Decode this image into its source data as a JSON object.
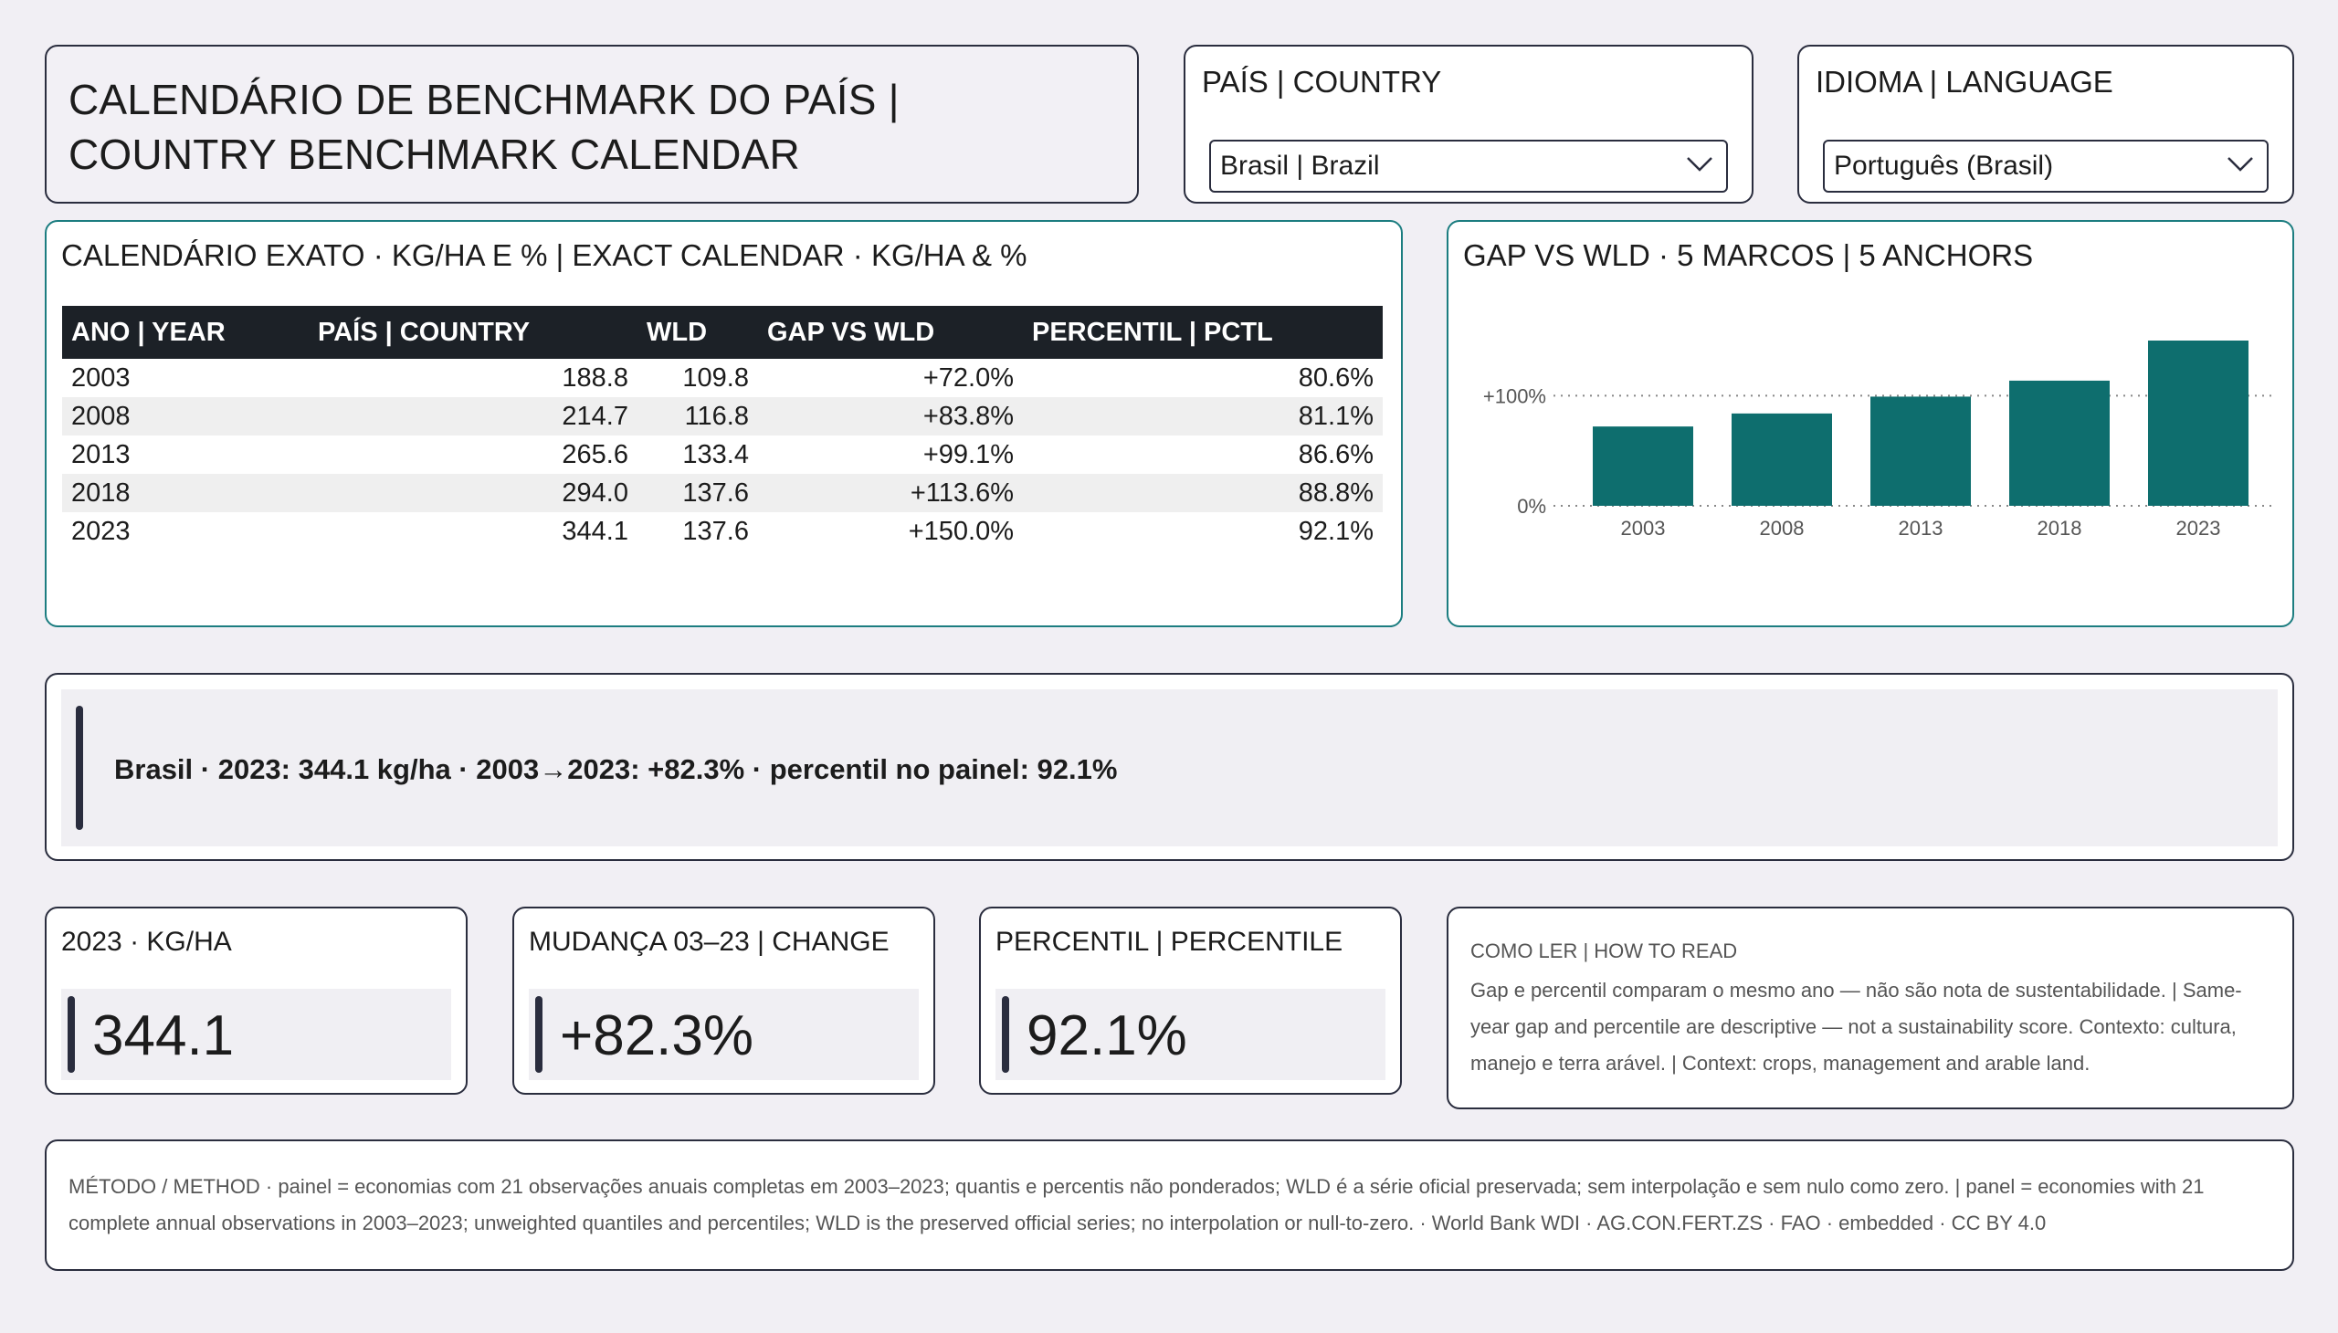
{
  "header": {
    "title": "CALENDÁRIO DE BENCHMARK DO PAÍS | COUNTRY BENCHMARK CALENDAR"
  },
  "country_slicer": {
    "title": "PAÍS | COUNTRY",
    "selected": "Brasil | Brazil"
  },
  "language_slicer": {
    "title": "IDIOMA | LANGUAGE",
    "selected": "Português (Brasil)"
  },
  "table": {
    "title": "CALENDÁRIO EXATO · KG/HA E % | EXACT CALENDAR · KG/HA & %",
    "columns": [
      "ANO | YEAR",
      "PAÍS | COUNTRY",
      "WLD",
      "GAP VS WLD",
      "PERCENTIL | PCTL"
    ],
    "rows": [
      [
        "2003",
        "188.8",
        "109.8",
        "+72.0%",
        "80.6%"
      ],
      [
        "2008",
        "214.7",
        "116.8",
        "+83.8%",
        "81.1%"
      ],
      [
        "2013",
        "265.6",
        "133.4",
        "+99.1%",
        "86.6%"
      ],
      [
        "2018",
        "294.0",
        "137.6",
        "+113.6%",
        "88.8%"
      ],
      [
        "2023",
        "344.1",
        "137.6",
        "+150.0%",
        "92.1%"
      ]
    ]
  },
  "chart": {
    "title": "GAP VS WLD · 5 MARCOS | 5 ANCHORS"
  },
  "chart_data": {
    "type": "bar",
    "categories": [
      "2003",
      "2008",
      "2013",
      "2018",
      "2023"
    ],
    "values": [
      72.0,
      83.8,
      99.1,
      113.6,
      150.0
    ],
    "y_ticks": [
      {
        "value": 0,
        "label": "0%"
      },
      {
        "value": 100,
        "label": "+100%"
      }
    ],
    "ylim": [
      0,
      150
    ],
    "color": "#0e6e6e",
    "grid": "dotted at ticks"
  },
  "insight": {
    "text": "Brasil · 2023: 344.1 kg/ha · 2003→2023: +82.3% · percentil no painel: 92.1%"
  },
  "kpis": [
    {
      "title": "2023 · KG/HA",
      "value": "344.1"
    },
    {
      "title": "MUDANÇA 03–23 | CHANGE",
      "value": "+82.3%"
    },
    {
      "title": "PERCENTIL | PERCENTILE",
      "value": "92.1%"
    }
  ],
  "how_to_read": {
    "title": "COMO LER | HOW TO READ",
    "text": "Gap e percentil comparam o mesmo ano — não são nota de sustentabilidade. | Same-year gap and percentile are descriptive — not a sustainability score. Contexto: cultura, manejo e terra arável. | Context: crops, management and arable land."
  },
  "method": {
    "text": "MÉTODO / METHOD · painel = economias com 21 observações anuais completas em 2003–2023; quantis e percentis não ponderados; WLD é a série oficial preservada; sem interpolação e sem nulo como zero. | panel = economies with 21 complete annual observations in 2003–2023; unweighted quantiles and percentiles; WLD is the preserved official series; no interpolation or null-to-zero. · World Bank WDI · AG.CON.FERT.ZS · FAO · embedded · CC BY 4.0"
  },
  "colors": {
    "accent": "#0e6e6e",
    "border_teal": "#1c7d80",
    "dark": "#2a2d3e",
    "table_header": "#1c2127"
  },
  "icons": {
    "dropdown": "chevron-down-icon"
  }
}
